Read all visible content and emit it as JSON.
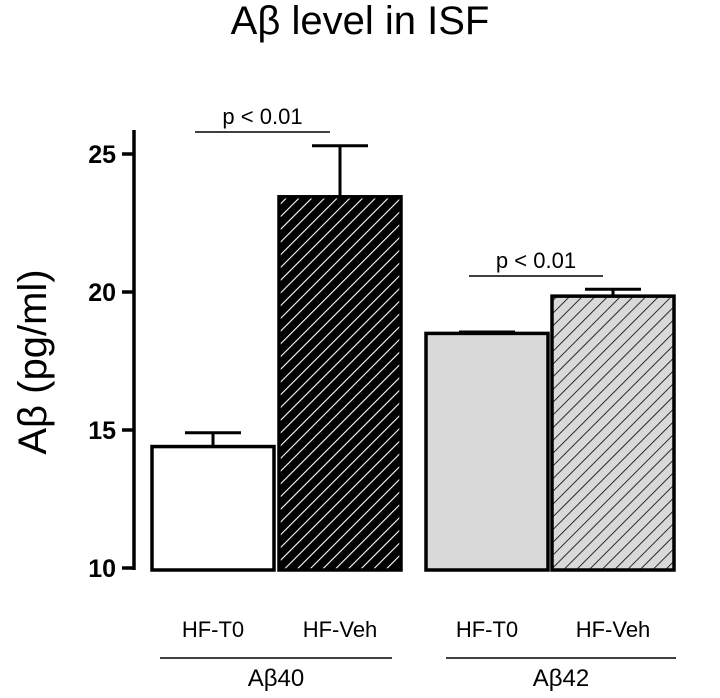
{
  "chart_data": {
    "type": "bar",
    "title": "Aβ level in ISF",
    "ylabel": "Aβ (pg/ml)",
    "xlabel": "",
    "ylim": [
      10,
      26
    ],
    "yticks": [
      10,
      15,
      20,
      25
    ],
    "ytick_labels": [
      "10",
      "15",
      "20",
      "25"
    ],
    "categories": [
      "HF-T0",
      "HF-Veh",
      "HF-T0",
      "HF-Veh"
    ],
    "values": [
      14.4,
      23.45,
      18.5,
      19.85
    ],
    "errors": [
      0.5,
      1.85,
      0.05,
      0.25
    ],
    "fills": [
      "white",
      "dark-hatch",
      "light-gray",
      "light-gray-hatch"
    ],
    "colors": {
      "dark_fill": "#000000",
      "light_fill": "#d9d9d9",
      "outline": "#000000"
    },
    "groups": [
      {
        "label": "Aβ40",
        "members": [
          0,
          1
        ]
      },
      {
        "label": "Aβ42",
        "members": [
          2,
          3
        ]
      }
    ],
    "annotations": [
      {
        "text": "p < 0.01",
        "between": [
          0,
          1
        ]
      },
      {
        "text": "p < 0.01",
        "between": [
          2,
          3
        ]
      }
    ],
    "grid": false,
    "legend": "none"
  }
}
